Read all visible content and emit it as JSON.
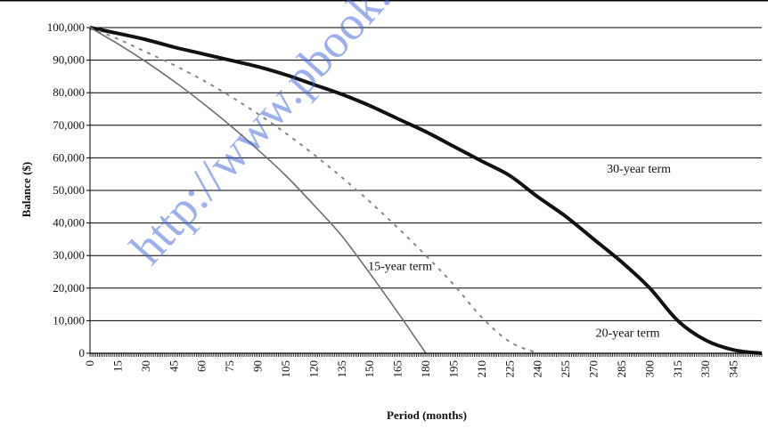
{
  "watermark": "http://www.pbook.com",
  "chart_data": {
    "type": "line",
    "xlabel": "Period (months)",
    "ylabel": "Balance ($)",
    "xlim": [
      0,
      360
    ],
    "ylim": [
      0,
      100000
    ],
    "x_ticks": [
      0,
      15,
      30,
      45,
      60,
      75,
      90,
      105,
      120,
      135,
      150,
      165,
      180,
      195,
      210,
      225,
      240,
      255,
      270,
      285,
      300,
      315,
      330,
      345
    ],
    "y_ticks": [
      0,
      10000,
      20000,
      30000,
      40000,
      50000,
      60000,
      70000,
      80000,
      90000,
      100000
    ],
    "y_tick_labels": [
      "0",
      "10,000",
      "20,000",
      "30,000",
      "40,000",
      "50,000",
      "60,000",
      "70,000",
      "80,000",
      "90,000",
      "100,000"
    ],
    "grid": "horizontal",
    "series": [
      {
        "name": "30-year term",
        "color": "#111111",
        "style": "solid-thick",
        "x": [
          0,
          15,
          30,
          45,
          60,
          75,
          90,
          105,
          120,
          135,
          150,
          165,
          180,
          195,
          210,
          225,
          240,
          255,
          270,
          285,
          300,
          315,
          330,
          345,
          360
        ],
        "y": [
          100000,
          98200,
          96300,
          94000,
          92000,
          90000,
          88000,
          85500,
          82500,
          79500,
          76000,
          72000,
          68000,
          63500,
          59000,
          54500,
          48000,
          42000,
          35000,
          28000,
          20000,
          10000,
          4000,
          1000,
          0
        ]
      },
      {
        "name": "20-year term",
        "color": "#888888",
        "style": "dashed",
        "x": [
          0,
          15,
          30,
          45,
          60,
          75,
          90,
          105,
          120,
          135,
          150,
          165,
          180,
          195,
          210,
          225,
          240
        ],
        "y": [
          100000,
          96500,
          92500,
          88500,
          84000,
          79000,
          73500,
          67500,
          61000,
          54000,
          46500,
          38500,
          30000,
          21000,
          11000,
          3500,
          0
        ]
      },
      {
        "name": "15-year term",
        "color": "#6e6e6e",
        "style": "solid-thin",
        "x": [
          0,
          15,
          30,
          45,
          60,
          75,
          90,
          105,
          120,
          135,
          150,
          165,
          180
        ],
        "y": [
          100000,
          95000,
          89500,
          83500,
          77000,
          70000,
          62500,
          54500,
          45500,
          36000,
          24500,
          12500,
          0
        ]
      }
    ],
    "annotations": [
      {
        "text": "30-year term",
        "x": 277,
        "y": 55500
      },
      {
        "text": "20-year term",
        "x": 271,
        "y": 5000
      },
      {
        "text": "15-year term",
        "x": 149,
        "y": 25500
      }
    ]
  }
}
